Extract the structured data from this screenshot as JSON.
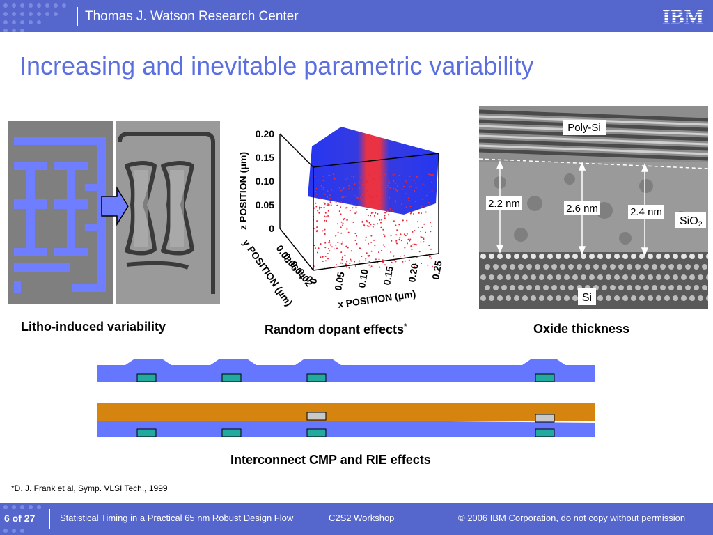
{
  "header": {
    "title": "Thomas J. Watson Research Center",
    "logo": "IBM"
  },
  "slide": {
    "title": "Increasing and inevitable parametric variability"
  },
  "captions": {
    "litho": "Litho-induced variability",
    "dopant": "Random dopant effects",
    "dopant_mark": "*",
    "oxide": "Oxide thickness",
    "interconnect": "Interconnect CMP and RIE effects"
  },
  "dopant_plot": {
    "z_axis_label": "z POSITION (μm)",
    "z_ticks": [
      "0.20",
      "0.15",
      "0.10",
      "0.05",
      "0"
    ],
    "y_axis_label": "y POSITION (μm)",
    "y_ticks": [
      "0.08",
      "0.06",
      "0.04",
      "0.02",
      "0"
    ],
    "x_axis_label": "x POSITION (μm)",
    "x_ticks": [
      "0",
      "0.05",
      "0.10",
      "0.15",
      "0.20",
      "0.25"
    ],
    "colors": {
      "red": "#e8283a",
      "blue": "#1a2cf0"
    }
  },
  "tem_image": {
    "label_poly": "Poly-Si",
    "label_sio2": "SiO",
    "label_sio2_sub": "2",
    "label_si": "Si",
    "thickness_labels": [
      "2.2 nm",
      "2.6 nm",
      "2.4 nm"
    ]
  },
  "reference": "*D. J. Frank et al, Symp. VLSI Tech., 1999",
  "footer": {
    "page": "6 of 27",
    "title": "Statistical Timing in a Practical 65 nm Robust Design Flow",
    "workshop": "C2S2 Workshop",
    "copyright": "© 2006 IBM Corporation, do not copy without permission"
  },
  "colors": {
    "header_bg": "#5566cc",
    "title_text": "#5b6fe0",
    "metal_blue": "#6677ff",
    "copper_orange": "#d4840f",
    "cap_teal": "#22aaa0"
  }
}
